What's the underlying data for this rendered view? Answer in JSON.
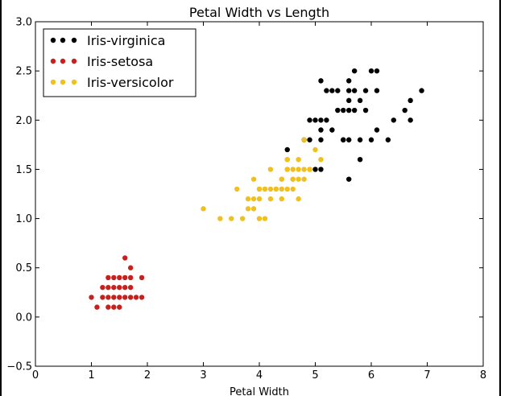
{
  "chart_data": {
    "type": "scatter",
    "title": "Petal Width vs Length",
    "xlabel": "Petal Width",
    "ylabel": "",
    "xlim": [
      0,
      8
    ],
    "ylim": [
      -0.5,
      3.0
    ],
    "xticks": [
      "0",
      "1",
      "2",
      "3",
      "4",
      "5",
      "6",
      "7",
      "8"
    ],
    "yticks": [
      "3.0",
      "2.5",
      "2.0",
      "1.5",
      "1.0",
      "0.5",
      "0.0",
      "−0.5"
    ],
    "grid": false,
    "legend_position": "top-left",
    "series": [
      {
        "name": "Iris-virginica",
        "color": "#000000",
        "points": [
          [
            6.0,
            2.5
          ],
          [
            5.1,
            1.9
          ],
          [
            5.9,
            2.1
          ],
          [
            5.6,
            1.8
          ],
          [
            5.8,
            2.2
          ],
          [
            6.6,
            2.1
          ],
          [
            4.5,
            1.7
          ],
          [
            6.3,
            1.8
          ],
          [
            5.8,
            1.8
          ],
          [
            6.1,
            2.5
          ],
          [
            5.1,
            2.0
          ],
          [
            5.3,
            1.9
          ],
          [
            5.5,
            2.1
          ],
          [
            5.0,
            2.0
          ],
          [
            5.1,
            2.4
          ],
          [
            5.3,
            2.3
          ],
          [
            5.5,
            1.8
          ],
          [
            6.7,
            2.2
          ],
          [
            6.9,
            2.3
          ],
          [
            5.0,
            1.5
          ],
          [
            5.7,
            2.3
          ],
          [
            4.9,
            2.0
          ],
          [
            6.7,
            2.0
          ],
          [
            4.9,
            1.8
          ],
          [
            5.7,
            2.1
          ],
          [
            6.0,
            1.8
          ],
          [
            4.8,
            1.8
          ],
          [
            5.6,
            2.1
          ],
          [
            5.8,
            1.6
          ],
          [
            6.1,
            1.9
          ],
          [
            6.4,
            2.0
          ],
          [
            5.6,
            2.2
          ],
          [
            5.1,
            1.5
          ],
          [
            5.6,
            1.4
          ],
          [
            6.1,
            2.3
          ],
          [
            5.6,
            2.4
          ],
          [
            5.5,
            1.8
          ],
          [
            5.4,
            2.1
          ],
          [
            5.2,
            2.3
          ],
          [
            5.9,
            2.3
          ],
          [
            5.7,
            2.5
          ],
          [
            5.2,
            2.0
          ],
          [
            5.4,
            2.3
          ],
          [
            5.1,
            1.8
          ],
          [
            5.6,
            2.3
          ]
        ]
      },
      {
        "name": "Iris-setosa",
        "color": "#c8201c",
        "points": [
          [
            1.4,
            0.2
          ],
          [
            1.3,
            0.2
          ],
          [
            1.5,
            0.2
          ],
          [
            1.7,
            0.4
          ],
          [
            1.4,
            0.3
          ],
          [
            1.5,
            0.1
          ],
          [
            1.6,
            0.2
          ],
          [
            1.1,
            0.1
          ],
          [
            1.2,
            0.2
          ],
          [
            1.3,
            0.4
          ],
          [
            1.7,
            0.3
          ],
          [
            1.5,
            0.4
          ],
          [
            1.0,
            0.2
          ],
          [
            1.7,
            0.5
          ],
          [
            1.9,
            0.2
          ],
          [
            1.6,
            0.4
          ],
          [
            1.5,
            0.3
          ],
          [
            1.4,
            0.1
          ],
          [
            1.6,
            0.6
          ],
          [
            1.9,
            0.4
          ],
          [
            1.6,
            0.3
          ],
          [
            1.3,
            0.3
          ],
          [
            1.8,
            0.2
          ],
          [
            1.2,
            0.3
          ],
          [
            1.3,
            0.1
          ],
          [
            1.7,
            0.2
          ],
          [
            1.4,
            0.4
          ]
        ]
      },
      {
        "name": "Iris-versicolor",
        "color": "#f0c020",
        "points": [
          [
            4.7,
            1.4
          ],
          [
            4.5,
            1.5
          ],
          [
            4.9,
            1.5
          ],
          [
            4.0,
            1.3
          ],
          [
            4.6,
            1.5
          ],
          [
            4.5,
            1.3
          ],
          [
            4.7,
            1.6
          ],
          [
            3.3,
            1.0
          ],
          [
            4.6,
            1.3
          ],
          [
            3.9,
            1.4
          ],
          [
            3.5,
            1.0
          ],
          [
            4.2,
            1.5
          ],
          [
            4.0,
            1.0
          ],
          [
            3.6,
            1.3
          ],
          [
            4.4,
            1.4
          ],
          [
            4.1,
            1.0
          ],
          [
            4.5,
            1.5
          ],
          [
            3.9,
            1.1
          ],
          [
            4.8,
            1.8
          ],
          [
            4.0,
            1.3
          ],
          [
            4.9,
            1.5
          ],
          [
            4.7,
            1.2
          ],
          [
            4.3,
            1.3
          ],
          [
            4.4,
            1.4
          ],
          [
            4.8,
            1.4
          ],
          [
            5.0,
            1.7
          ],
          [
            3.8,
            1.1
          ],
          [
            3.7,
            1.0
          ],
          [
            3.9,
            1.2
          ],
          [
            5.1,
            1.6
          ],
          [
            4.5,
            1.6
          ],
          [
            4.7,
            1.5
          ],
          [
            4.1,
            1.3
          ],
          [
            4.4,
            1.2
          ],
          [
            4.6,
            1.4
          ],
          [
            3.0,
            1.1
          ],
          [
            4.2,
            1.2
          ],
          [
            4.2,
            1.3
          ],
          [
            4.3,
            1.3
          ],
          [
            4.1,
            1.3
          ],
          [
            4.6,
            1.4
          ],
          [
            4.0,
            1.2
          ],
          [
            4.8,
            1.5
          ],
          [
            4.4,
            1.3
          ],
          [
            4.5,
            1.6
          ],
          [
            3.8,
            1.2
          ]
        ]
      }
    ]
  }
}
